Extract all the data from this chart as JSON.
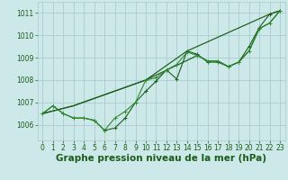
{
  "bg_color": "#cce8e8",
  "grid_color": "#aacccc",
  "line_color": "#1a5c1a",
  "line_color2": "#2d8b2d",
  "xlabel": "Graphe pression niveau de la mer (hPa)",
  "xlabel_fontsize": 7.5,
  "xlim": [
    -0.5,
    23.5
  ],
  "ylim": [
    1005.3,
    1011.5
  ],
  "yticks": [
    1006,
    1007,
    1008,
    1009,
    1010,
    1011
  ],
  "xticks": [
    0,
    1,
    2,
    3,
    4,
    5,
    6,
    7,
    8,
    9,
    10,
    11,
    12,
    13,
    14,
    15,
    16,
    17,
    18,
    19,
    20,
    21,
    22,
    23
  ],
  "series1_x": [
    0,
    1,
    2,
    3,
    4,
    5,
    6,
    7,
    8,
    9,
    10,
    11,
    12,
    13,
    14,
    15,
    16,
    17,
    18,
    19,
    20,
    21,
    22,
    23
  ],
  "series1_y": [
    1006.5,
    1006.85,
    1006.5,
    1006.3,
    1006.3,
    1006.2,
    1005.75,
    1005.85,
    1006.3,
    1007.0,
    1007.5,
    1007.95,
    1008.45,
    1008.05,
    1009.3,
    1009.15,
    1008.8,
    1008.8,
    1008.6,
    1008.8,
    1009.5,
    1010.35,
    1010.95,
    1011.1
  ],
  "series2_x": [
    0,
    1,
    2,
    3,
    4,
    5,
    6,
    7,
    8,
    9,
    10,
    11,
    12,
    13,
    14,
    15,
    16,
    17,
    18,
    19,
    20,
    21,
    22,
    23
  ],
  "series2_y": [
    1006.5,
    1006.85,
    1006.5,
    1006.3,
    1006.3,
    1006.2,
    1005.75,
    1006.3,
    1006.6,
    1007.0,
    1008.0,
    1008.1,
    1008.45,
    1008.7,
    1009.25,
    1009.1,
    1008.85,
    1008.85,
    1008.6,
    1008.8,
    1009.3,
    1010.3,
    1010.55,
    1011.1
  ],
  "series3_x": [
    0,
    3,
    10,
    15,
    16,
    17,
    18,
    19,
    20,
    21,
    22,
    23
  ],
  "series3_y": [
    1006.5,
    1006.85,
    1008.0,
    1009.1,
    1008.85,
    1008.85,
    1008.6,
    1008.8,
    1009.3,
    1010.3,
    1010.55,
    1011.1
  ],
  "series4_x": [
    0,
    3,
    10,
    14,
    22,
    23
  ],
  "series4_y": [
    1006.5,
    1006.85,
    1008.0,
    1009.3,
    1010.95,
    1011.1
  ]
}
